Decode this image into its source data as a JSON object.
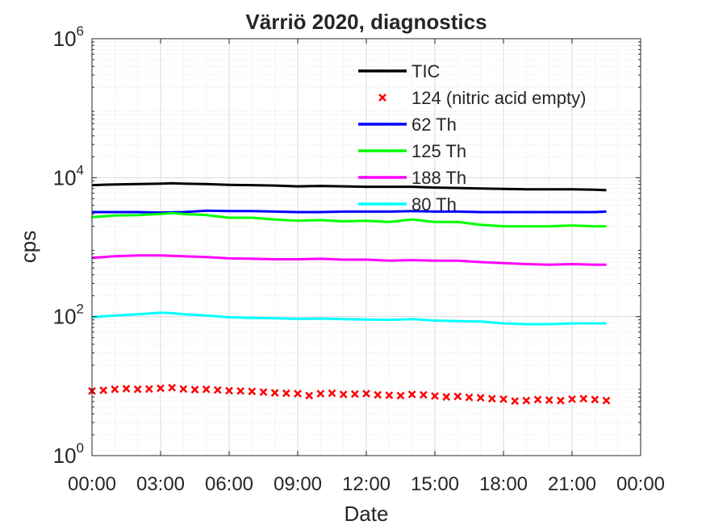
{
  "chart_data": {
    "type": "line",
    "title": "Värriö 2020, diagnostics",
    "xlabel": "Date",
    "ylabel": "cps",
    "yscale": "log",
    "ylim": [
      1,
      1000000
    ],
    "xlim": [
      0,
      24
    ],
    "grid": true,
    "minor_grid": true,
    "legend_position": "top-right",
    "x_ticks": [
      0,
      3,
      6,
      9,
      12,
      15,
      18,
      21,
      24
    ],
    "x_tick_labels": [
      "00:00",
      "03:00",
      "06:00",
      "09:00",
      "12:00",
      "15:00",
      "18:00",
      "21:00",
      "00:00"
    ],
    "y_ticks": [
      {
        "value": 1,
        "base": "10",
        "exp": "0"
      },
      {
        "value": 100,
        "base": "10",
        "exp": "2"
      },
      {
        "value": 10000,
        "base": "10",
        "exp": "4"
      },
      {
        "value": 1000000,
        "base": "10",
        "exp": "6"
      }
    ],
    "series": [
      {
        "name": "TIC",
        "style": "line",
        "color": "#000000",
        "x": [
          0,
          1,
          2,
          3,
          3.5,
          4,
          5,
          6,
          7,
          8,
          9,
          10,
          11,
          12,
          13,
          14,
          15,
          16,
          17,
          18,
          19,
          20,
          21,
          22,
          22.5
        ],
        "y": [
          7800,
          8000,
          8100,
          8200,
          8300,
          8200,
          8100,
          7900,
          7800,
          7700,
          7500,
          7600,
          7500,
          7400,
          7400,
          7400,
          7200,
          7100,
          7000,
          6900,
          6800,
          6800,
          6800,
          6700,
          6600
        ]
      },
      {
        "name": "124 (nitric acid empty)",
        "style": "marker",
        "color": "#ff0000",
        "x": [
          0,
          0.5,
          1,
          1.5,
          2,
          2.5,
          3,
          3.5,
          4,
          4.5,
          5,
          5.5,
          6,
          6.5,
          7,
          7.5,
          8,
          8.5,
          9,
          9.5,
          10,
          10.5,
          11,
          11.5,
          12,
          12.5,
          13,
          13.5,
          14,
          14.5,
          15,
          15.5,
          16,
          16.5,
          17,
          17.5,
          18,
          18.5,
          19,
          19.5,
          20,
          20.5,
          21,
          21.5,
          22,
          22.5
        ],
        "y": [
          8.5,
          8.7,
          9.0,
          9.2,
          9.0,
          9.1,
          9.3,
          9.5,
          9.1,
          8.9,
          9.0,
          8.8,
          8.6,
          8.5,
          8.4,
          8.2,
          8.0,
          7.9,
          7.8,
          7.3,
          7.8,
          7.9,
          7.6,
          7.7,
          7.8,
          7.5,
          7.4,
          7.3,
          7.6,
          7.5,
          7.2,
          7.0,
          7.1,
          6.9,
          6.8,
          6.6,
          6.5,
          6.1,
          6.2,
          6.4,
          6.3,
          6.2,
          6.5,
          6.6,
          6.4,
          6.2
        ]
      },
      {
        "name": "62 Th",
        "style": "line",
        "color": "#0000ff",
        "x": [
          0,
          1,
          2,
          3,
          4,
          5,
          6,
          7,
          8,
          9,
          10,
          11,
          12,
          13,
          14,
          15,
          16,
          17,
          18,
          19,
          20,
          21,
          22,
          22.5
        ],
        "y": [
          3200,
          3200,
          3200,
          3150,
          3200,
          3350,
          3300,
          3300,
          3250,
          3200,
          3200,
          3250,
          3250,
          3250,
          3300,
          3250,
          3250,
          3200,
          3200,
          3200,
          3200,
          3200,
          3200,
          3250
        ]
      },
      {
        "name": "125 Th",
        "style": "line",
        "color": "#00ff00",
        "x": [
          0,
          1,
          2,
          3,
          3.5,
          4,
          5,
          6,
          7,
          8,
          9,
          10,
          11,
          12,
          13,
          13.5,
          14,
          15,
          16,
          17,
          18,
          19,
          20,
          21,
          22,
          22.5
        ],
        "y": [
          2700,
          2850,
          2900,
          3000,
          3100,
          3000,
          2900,
          2650,
          2650,
          2500,
          2400,
          2450,
          2350,
          2400,
          2300,
          2400,
          2500,
          2300,
          2300,
          2100,
          2000,
          2000,
          2000,
          2050,
          2000,
          2000
        ]
      },
      {
        "name": "188 Th",
        "style": "line",
        "color": "#ff00ff",
        "x": [
          0,
          1,
          2,
          3,
          4,
          5,
          6,
          7,
          8,
          9,
          10,
          11,
          12,
          13,
          14,
          15,
          16,
          17,
          18,
          19,
          20,
          21,
          22,
          22.5
        ],
        "y": [
          700,
          740,
          760,
          760,
          740,
          720,
          690,
          680,
          670,
          670,
          680,
          660,
          660,
          640,
          650,
          640,
          640,
          610,
          590,
          570,
          560,
          570,
          560,
          560
        ]
      },
      {
        "name": "80 Th",
        "style": "line",
        "color": "#00ffff",
        "x": [
          0,
          1,
          2,
          3,
          3.5,
          4,
          5,
          6,
          7,
          8,
          9,
          10,
          11,
          12,
          13,
          14,
          15,
          16,
          17,
          18,
          19,
          20,
          21,
          22,
          22.5
        ],
        "y": [
          98,
          104,
          108,
          114,
          112,
          108,
          104,
          98,
          96,
          95,
          93,
          94,
          92,
          91,
          90,
          92,
          88,
          86,
          85,
          80,
          78,
          78,
          80,
          80,
          80
        ]
      }
    ]
  }
}
